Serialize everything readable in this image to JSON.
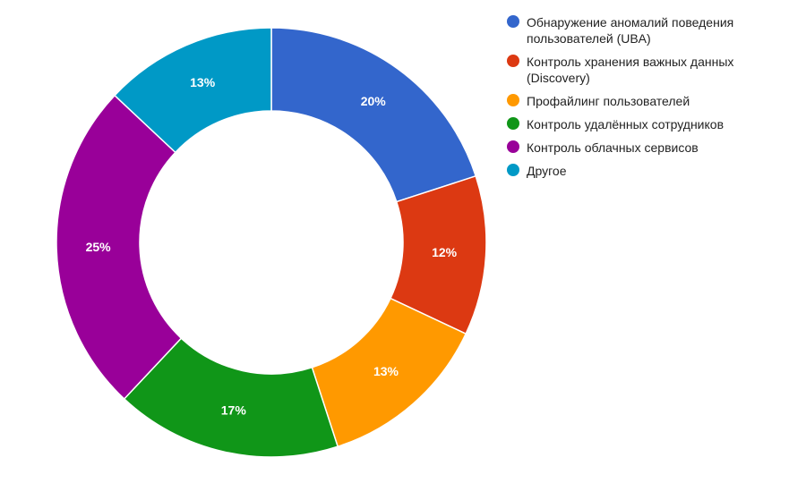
{
  "chart_data": {
    "type": "pie",
    "donut": true,
    "legend_position": "right",
    "slices": [
      {
        "label": "Обнаружение аномалий поведения пользователей (UBA)",
        "value": 20,
        "display": "20%",
        "color": "#3366cc"
      },
      {
        "label": "Контроль хранения важных данных (Discovery)",
        "value": 12,
        "display": "12%",
        "color": "#dc3912"
      },
      {
        "label": "Профайлинг пользователей",
        "value": 13,
        "display": "13%",
        "color": "#ff9900"
      },
      {
        "label": "Контроль удалённых сотрудников",
        "value": 17,
        "display": "17%",
        "color": "#109618"
      },
      {
        "label": "Контроль облачных сервисов",
        "value": 25,
        "display": "25%",
        "color": "#990099"
      },
      {
        "label": "Другое",
        "value": 13,
        "display": "13%",
        "color": "#0099c6"
      }
    ]
  }
}
